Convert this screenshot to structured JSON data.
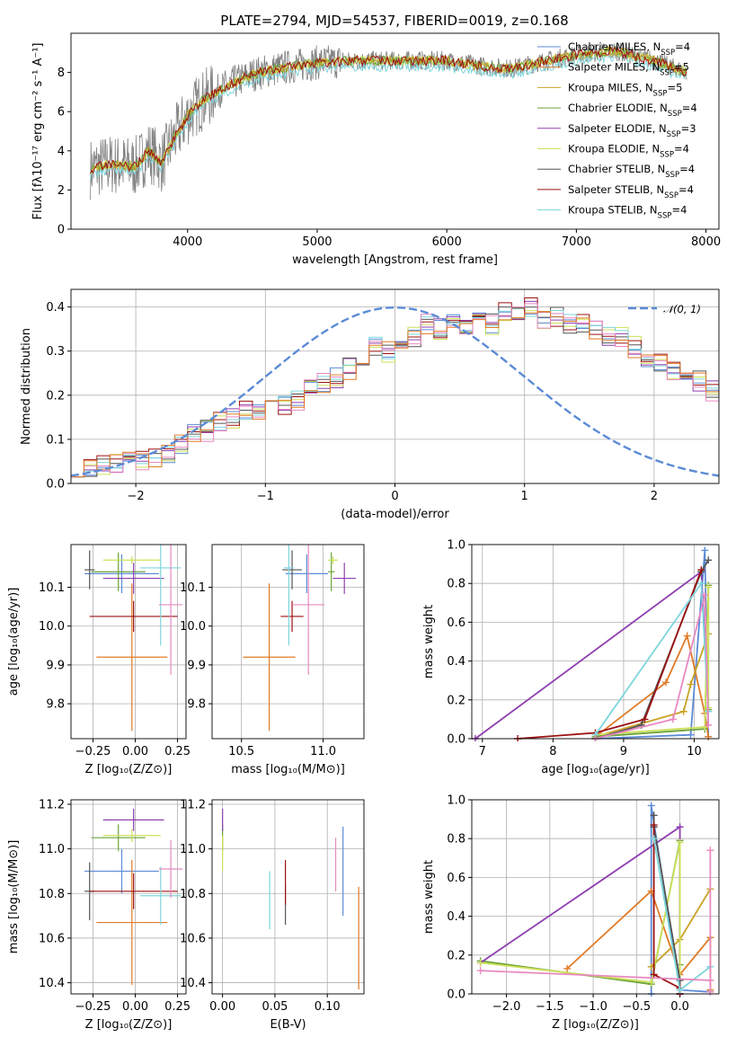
{
  "colors": {
    "Chabrier MILES": "#5b8bd6",
    "Salpeter MILES": "#e07b28",
    "Kroupa MILES": "#c9a227",
    "Chabrier ELODIE": "#6ca33a",
    "Salpeter ELODIE": "#8e3fb0",
    "Kroupa ELODIE": "#cde05a",
    "Chabrier STELIB": "#555555",
    "Salpeter STELIB": "#9b1111",
    "Kroupa STELIB": "#7dd6dc",
    "Pink": "#e889c0",
    "Gauss": "#5b8bd6"
  },
  "chart_data": [
    {
      "id": "spectrum",
      "type": "line",
      "title": "PLATE=2794, MJD=54537, FIBERID=0019, z=0.168",
      "xlabel": "wavelength [Angstrom, rest frame]",
      "ylabel": "Flux [fλ10⁻¹⁷ erg cm⁻² s⁻¹ A⁻¹]",
      "xlim": [
        3100,
        8100
      ],
      "ylim": [
        0,
        10
      ],
      "xticks": [
        4000,
        5000,
        6000,
        7000,
        8000
      ],
      "yticks": [
        0,
        2,
        4,
        6,
        8
      ],
      "legend_position": "top-right",
      "legend": [
        {
          "main": "Chabrier MILES, N",
          "sub": "SSP",
          "tail": "=4",
          "key": "Chabrier MILES"
        },
        {
          "main": "Salpeter MILES, N",
          "sub": "SSP",
          "tail": "=5",
          "key": "Salpeter MILES"
        },
        {
          "main": "Kroupa MILES, N",
          "sub": "SSP",
          "tail": "=5",
          "key": "Kroupa MILES"
        },
        {
          "main": "Chabrier ELODIE, N",
          "sub": "SSP",
          "tail": "=4",
          "key": "Chabrier ELODIE"
        },
        {
          "main": "Salpeter ELODIE, N",
          "sub": "SSP",
          "tail": "=3",
          "key": "Salpeter ELODIE"
        },
        {
          "main": "Kroupa ELODIE, N",
          "sub": "SSP",
          "tail": "=4",
          "key": "Kroupa ELODIE"
        },
        {
          "main": "Chabrier STELIB, N",
          "sub": "SSP",
          "tail": "=4",
          "key": "Chabrier STELIB"
        },
        {
          "main": "Salpeter STELIB, N",
          "sub": "SSP",
          "tail": "=4",
          "key": "Salpeter STELIB"
        },
        {
          "main": "Kroupa STELIB, N",
          "sub": "SSP",
          "tail": "=4",
          "key": "Kroupa STELIB"
        }
      ],
      "model_continuum": {
        "x": [
          3250,
          3400,
          3600,
          3700,
          3800,
          3900,
          4000,
          4100,
          4300,
          4500,
          4700,
          5000,
          5300,
          5600,
          6000,
          6300,
          6500,
          6700,
          7000,
          7300,
          7600,
          7850
        ],
        "y": [
          3.1,
          3.3,
          3.2,
          4.0,
          3.4,
          4.7,
          5.8,
          6.5,
          7.3,
          7.9,
          8.2,
          8.5,
          8.6,
          8.6,
          8.6,
          8.3,
          8.2,
          8.5,
          8.9,
          9.1,
          8.6,
          8.0
        ]
      }
    },
    {
      "id": "residuals",
      "type": "bar",
      "xlabel": "(data-model)/error",
      "ylabel": "Normed distribution",
      "xlim": [
        -2.5,
        2.5
      ],
      "ylim": [
        0,
        0.44
      ],
      "xticks": [
        -2,
        -1,
        0,
        1,
        2
      ],
      "yticks": [
        0.0,
        0.1,
        0.2,
        0.3,
        0.4
      ],
      "legend": "𝒩(0, 1)",
      "bin_width": 0.1,
      "bins_start": -2.5,
      "series_values": [
        0.04,
        0.04,
        0.04,
        0.05,
        0.05,
        0.05,
        0.06,
        0.07,
        0.09,
        0.11,
        0.12,
        0.14,
        0.15,
        0.17,
        0.17,
        0.19,
        0.18,
        0.19,
        0.21,
        0.23,
        0.24,
        0.26,
        0.28,
        0.31,
        0.3,
        0.33,
        0.33,
        0.36,
        0.35,
        0.37,
        0.36,
        0.38,
        0.36,
        0.39,
        0.38,
        0.4,
        0.37,
        0.38,
        0.36,
        0.36,
        0.35,
        0.33,
        0.33,
        0.31,
        0.28,
        0.27,
        0.26,
        0.24,
        0.23,
        0.21,
        0.19,
        0.18,
        0.17,
        0.15,
        0.14,
        0.13,
        0.11,
        0.1,
        0.09,
        0.08,
        0.07,
        0.06,
        0.05,
        0.05,
        0.04,
        0.04,
        0.03,
        0.03,
        0.03,
        0.03
      ]
    },
    {
      "id": "age_vs_Z",
      "type": "scatter",
      "xlabel": "Z [log₁₀(Z/Z⊙)]",
      "ylabel": "age  [log₁₀(age/yr)]",
      "xlim": [
        -0.38,
        0.3
      ],
      "ylim": [
        9.71,
        10.21
      ],
      "xticks": [
        -0.25,
        0.0,
        0.25
      ],
      "xticklabels": [
        "−0.25",
        "0.00",
        "0.25"
      ],
      "yticks": [
        9.8,
        9.9,
        10.0,
        10.1
      ],
      "points": [
        {
          "key": "Chabrier MILES",
          "x": -0.08,
          "y": 10.135,
          "dx": 0.22,
          "dy": 0.05
        },
        {
          "key": "Salpeter MILES",
          "x": -0.02,
          "y": 9.92,
          "dx": 0.21,
          "dy": 0.19
        },
        {
          "key": "Chabrier ELODIE",
          "x": -0.1,
          "y": 10.14,
          "dx": 0.16,
          "dy": 0.05
        },
        {
          "key": "Salpeter ELODIE",
          "x": -0.01,
          "y": 10.123,
          "dx": 0.18,
          "dy": 0.04
        },
        {
          "key": "Kroupa ELODIE",
          "x": -0.02,
          "y": 10.17,
          "dx": 0.17,
          "dy": 0.01
        },
        {
          "key": "Chabrier STELIB",
          "x": -0.27,
          "y": 10.145,
          "dx": 0.03,
          "dy": 0.05
        },
        {
          "key": "Salpeter STELIB",
          "x": -0.01,
          "y": 10.025,
          "dx": 0.26,
          "dy": 0.04
        },
        {
          "key": "Kroupa STELIB",
          "x": 0.15,
          "y": 10.15,
          "dx": 0.12,
          "dy": 0.2
        },
        {
          "key": "Pink",
          "x": 0.21,
          "y": 10.055,
          "dx": 0.07,
          "dy": 0.18
        }
      ]
    },
    {
      "id": "age_vs_mass",
      "type": "scatter",
      "xlabel": "mass [log₁₀(M/M⊙)]",
      "xlim": [
        10.32,
        11.25
      ],
      "ylim": [
        9.71,
        10.21
      ],
      "xticks": [
        10.5,
        11.0
      ],
      "xticklabels": [
        "10.5",
        "11.0"
      ],
      "yticks": [
        9.8,
        9.9,
        10.0,
        10.1
      ],
      "points": [
        {
          "key": "Chabrier MILES",
          "x": 10.9,
          "y": 10.135,
          "dx": 0.13,
          "dy": 0.05
        },
        {
          "key": "Salpeter MILES",
          "x": 10.67,
          "y": 9.92,
          "dx": 0.16,
          "dy": 0.19
        },
        {
          "key": "Chabrier ELODIE",
          "x": 11.05,
          "y": 10.14,
          "dx": 0.02,
          "dy": 0.05
        },
        {
          "key": "Salpeter ELODIE",
          "x": 11.13,
          "y": 10.123,
          "dx": 0.07,
          "dy": 0.04
        },
        {
          "key": "Kroupa ELODIE",
          "x": 11.06,
          "y": 10.17,
          "dx": 0.03,
          "dy": 0.01
        },
        {
          "key": "Chabrier STELIB",
          "x": 10.81,
          "y": 10.145,
          "dx": 0.06,
          "dy": 0.05
        },
        {
          "key": "Salpeter STELIB",
          "x": 10.81,
          "y": 10.025,
          "dx": 0.07,
          "dy": 0.04
        },
        {
          "key": "Kroupa STELIB",
          "x": 10.79,
          "y": 10.15,
          "dx": 0.03,
          "dy": 0.2
        },
        {
          "key": "Pink",
          "x": 10.91,
          "y": 10.055,
          "dx": 0.1,
          "dy": 0.18
        }
      ]
    },
    {
      "id": "weight_vs_age",
      "type": "line",
      "xlabel": "age  [log₁₀(age/yr)]",
      "ylabel": "mass weight",
      "xlim": [
        6.85,
        10.35
      ],
      "ylim": [
        0,
        1
      ],
      "xticks": [
        7,
        8,
        9,
        10
      ],
      "yticks": [
        0.0,
        0.2,
        0.4,
        0.6,
        0.8,
        1.0
      ],
      "series": [
        {
          "key": "Chabrier MILES",
          "x": [
            8.6,
            9.95,
            10.15,
            10.2
          ],
          "y": [
            0.0,
            0.02,
            0.97,
            0.01
          ]
        },
        {
          "key": "Salpeter MILES",
          "x": [
            8.6,
            9.6,
            9.9,
            10.15,
            10.2
          ],
          "y": [
            0.01,
            0.29,
            0.53,
            0.13,
            0.01
          ]
        },
        {
          "key": "Kroupa MILES",
          "x": [
            8.6,
            9.85,
            9.95,
            10.2
          ],
          "y": [
            0.01,
            0.14,
            0.28,
            0.54
          ]
        },
        {
          "key": "Chabrier ELODIE",
          "x": [
            8.6,
            10.15,
            10.2,
            10.2
          ],
          "y": [
            0.01,
            0.05,
            0.79,
            0.15
          ]
        },
        {
          "key": "Salpeter ELODIE",
          "x": [
            6.9,
            10.1,
            10.2
          ],
          "y": [
            0.0,
            0.86,
            0.14
          ]
        },
        {
          "key": "Kroupa ELODIE",
          "x": [
            8.6,
            10.15,
            10.2,
            10.2
          ],
          "y": [
            0.02,
            0.06,
            0.78,
            0.16
          ]
        },
        {
          "key": "Chabrier STELIB",
          "x": [
            8.6,
            9.25,
            10.1,
            10.2
          ],
          "y": [
            0.0,
            0.07,
            0.86,
            0.92
          ]
        },
        {
          "key": "Salpeter STELIB",
          "x": [
            7.5,
            8.6,
            9.3,
            10.1
          ],
          "y": [
            0.0,
            0.03,
            0.1,
            0.87
          ]
        },
        {
          "key": "Kroupa STELIB",
          "x": [
            8.6,
            10.1,
            10.2
          ],
          "y": [
            0.02,
            0.8,
            0.14
          ]
        },
        {
          "key": "Pink",
          "x": [
            8.6,
            9.7,
            10.15,
            10.2
          ],
          "y": [
            0.0,
            0.1,
            0.74,
            0.07
          ]
        }
      ]
    },
    {
      "id": "mass_vs_Z",
      "type": "scatter",
      "xlabel": "Z [log₁₀(Z/Z⊙)]",
      "ylabel": "mass [log₁₀(M/M⊙)]",
      "xlim": [
        -0.38,
        0.3
      ],
      "ylim": [
        10.35,
        11.22
      ],
      "xticks": [
        -0.25,
        0.0,
        0.25
      ],
      "xticklabels": [
        "−0.25",
        "0.00",
        "0.25"
      ],
      "yticks": [
        10.4,
        10.6,
        10.8,
        11.0,
        11.2
      ],
      "points": [
        {
          "key": "Chabrier MILES",
          "x": -0.08,
          "y": 10.9,
          "dx": 0.22,
          "dy": 0.1
        },
        {
          "key": "Salpeter MILES",
          "x": -0.02,
          "y": 10.67,
          "dx": 0.21,
          "dy": 0.28
        },
        {
          "key": "Chabrier ELODIE",
          "x": -0.1,
          "y": 11.05,
          "dx": 0.16,
          "dy": 0.06
        },
        {
          "key": "Salpeter ELODIE",
          "x": -0.01,
          "y": 11.13,
          "dx": 0.18,
          "dy": 0.05
        },
        {
          "key": "Kroupa ELODIE",
          "x": -0.02,
          "y": 11.06,
          "dx": 0.17,
          "dy": 0.03
        },
        {
          "key": "Chabrier STELIB",
          "x": -0.27,
          "y": 10.81,
          "dx": 0.03,
          "dy": 0.13
        },
        {
          "key": "Salpeter STELIB",
          "x": -0.01,
          "y": 10.81,
          "dx": 0.26,
          "dy": 0.08
        },
        {
          "key": "Kroupa STELIB",
          "x": 0.15,
          "y": 10.79,
          "dx": 0.12,
          "dy": 0.13
        },
        {
          "key": "Pink",
          "x": 0.21,
          "y": 10.91,
          "dx": 0.07,
          "dy": 0.13
        }
      ]
    },
    {
      "id": "mass_vs_ebv",
      "type": "scatter",
      "xlabel": "E(B-V)",
      "xlim": [
        -0.01,
        0.135
      ],
      "ylim": [
        10.35,
        11.22
      ],
      "xticks": [
        0.0,
        0.05,
        0.1
      ],
      "xticklabels": [
        "0.00",
        "0.05",
        "0.10"
      ],
      "yticks": [
        10.4,
        10.6,
        10.8,
        11.0,
        11.2
      ],
      "points": [
        {
          "key": "Chabrier MILES",
          "x": 0.115,
          "y": 10.9,
          "dx": 0.0,
          "dy": 0.2
        },
        {
          "key": "Salpeter MILES",
          "x": 0.13,
          "y": 10.6,
          "dx": 0.0,
          "dy": 0.23
        },
        {
          "key": "Chabrier ELODIE",
          "x": 0.0,
          "y": 11.05,
          "dx": 0.0,
          "dy": 0.06
        },
        {
          "key": "Salpeter ELODIE",
          "x": 0.0,
          "y": 11.13,
          "dx": 0.0,
          "dy": 0.05
        },
        {
          "key": "Kroupa ELODIE",
          "x": 0.0,
          "y": 10.98,
          "dx": 0.0,
          "dy": 0.08
        },
        {
          "key": "Chabrier STELIB",
          "x": 0.06,
          "y": 10.75,
          "dx": 0.0,
          "dy": 0.09
        },
        {
          "key": "Salpeter STELIB",
          "x": 0.06,
          "y": 10.85,
          "dx": 0.0,
          "dy": 0.1
        },
        {
          "key": "Kroupa STELIB",
          "x": 0.045,
          "y": 10.77,
          "dx": 0.0,
          "dy": 0.13
        },
        {
          "key": "Pink",
          "x": 0.108,
          "y": 10.93,
          "dx": 0.0,
          "dy": 0.12
        }
      ]
    },
    {
      "id": "weight_vs_Z",
      "type": "line",
      "xlabel": "Z [log₁₀(Z/Z⊙)]",
      "ylabel": "mass weight",
      "xlim": [
        -2.4,
        0.45
      ],
      "ylim": [
        0,
        1
      ],
      "xticks": [
        -2.0,
        -1.5,
        -1.0,
        -0.5,
        0.0
      ],
      "xticklabels": [
        "−2.0",
        "−1.5",
        "−1.0",
        "−0.5",
        "0.0"
      ],
      "yticks": [
        0.0,
        0.2,
        0.4,
        0.6,
        0.8,
        1.0
      ],
      "series": [
        {
          "key": "Chabrier MILES",
          "x": [
            -0.33,
            -0.33,
            0.0,
            0.35
          ],
          "y": [
            0.0,
            0.97,
            0.02,
            0.01
          ]
        },
        {
          "key": "Salpeter MILES",
          "x": [
            -1.3,
            -0.33,
            0.0,
            0.35,
            0.35
          ],
          "y": [
            0.13,
            0.53,
            0.1,
            0.29,
            0.02
          ]
        },
        {
          "key": "Kroupa MILES",
          "x": [
            -0.33,
            0.0,
            0.35
          ],
          "y": [
            0.14,
            0.28,
            0.54
          ]
        },
        {
          "key": "Chabrier ELODIE",
          "x": [
            -2.3,
            -0.33,
            0.0,
            0.0
          ],
          "y": [
            0.17,
            0.05,
            0.79,
            0.15
          ]
        },
        {
          "key": "Salpeter ELODIE",
          "x": [
            -2.3,
            0.0,
            0.0
          ],
          "y": [
            0.16,
            0.86,
            0.0
          ]
        },
        {
          "key": "Kroupa ELODIE",
          "x": [
            -2.3,
            -0.33,
            0.0,
            0.0
          ],
          "y": [
            0.16,
            0.06,
            0.78,
            0.02
          ]
        },
        {
          "key": "Chabrier STELIB",
          "x": [
            -0.3,
            -0.3,
            0.0,
            0.0
          ],
          "y": [
            0.92,
            0.86,
            0.07,
            0.0
          ]
        },
        {
          "key": "Salpeter STELIB",
          "x": [
            -0.3,
            -0.3,
            0.0,
            0.0
          ],
          "y": [
            0.87,
            0.1,
            0.03,
            0.0
          ]
        },
        {
          "key": "Kroupa STELIB",
          "x": [
            -0.3,
            0.0,
            0.35
          ],
          "y": [
            0.8,
            0.02,
            0.14
          ]
        },
        {
          "key": "Pink",
          "x": [
            -2.3,
            0.35,
            0.35,
            0.35
          ],
          "y": [
            0.12,
            0.07,
            0.74,
            0.01
          ]
        }
      ]
    }
  ]
}
